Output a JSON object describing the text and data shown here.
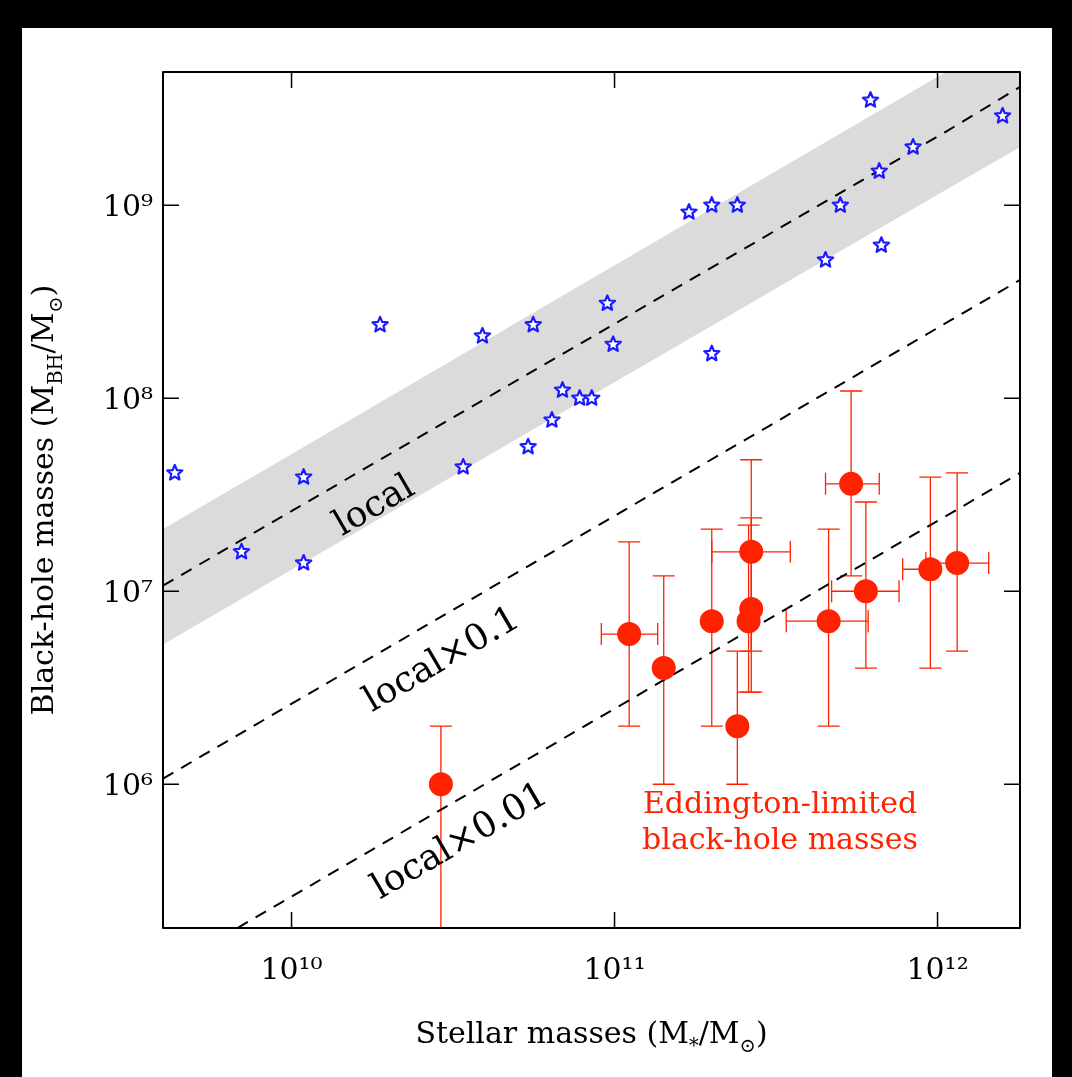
{
  "chart_data": {
    "type": "scatter",
    "xlabel": "Stellar masses (M$_{*}$/M$_{⊙}$)",
    "ylabel": "Black-hole masses (M$_{BH}$/M$_{⊙}$)",
    "log": "xy",
    "xlim": [
      4000000000.0,
      1800000000000.0
    ],
    "ylim": [
      180000.0,
      4900000000.0
    ],
    "xticks": [
      {
        "value": 10000000000.0,
        "label": "10¹⁰"
      },
      {
        "value": 100000000000.0,
        "label": "10¹¹"
      },
      {
        "value": 1000000000000.0,
        "label": "10¹²"
      }
    ],
    "yticks": [
      {
        "value": 1000000.0,
        "label": "10⁶"
      },
      {
        "value": 10000000.0,
        "label": "10⁷"
      },
      {
        "value": 100000000.0,
        "label": "10⁸"
      },
      {
        "value": 1000000000.0,
        "label": "10⁹"
      }
    ],
    "series": [
      {
        "type": "line",
        "color": "#000000",
        "line_style": "dashed",
        "marker": "none",
        "x": [
          4000000000.0,
          1060000000000.0,
          1800000000000.0
        ],
        "values": [
          10700000.0,
          2400000000.0,
          4100000000.0
        ],
        "lower": [
          5300000.0,
          1200000000.0,
          2000000000.0
        ],
        "upper": [
          21000000.0,
          4900000000.0,
          4900000000.0
        ]
      },
      {
        "type": "line",
        "color": "#000000",
        "line_style": "dashed",
        "marker": "none",
        "x": [
          4000000000.0,
          1800000000000.0
        ],
        "values": [
          1070000.0,
          410000000.0
        ]
      },
      {
        "type": "line",
        "color": "#000000",
        "line_style": "dashed",
        "marker": "none",
        "x": [
          6800000000.0,
          1800000000000.0
        ],
        "values": [
          180000.0,
          41000000.0
        ]
      },
      {
        "color": "#1a1aff",
        "marker": "star",
        "x": [
          4350000000.0,
          10900000000.0,
          18800000000.0,
          39000000000.0,
          56000000000.0,
          34000000000.0,
          54000000000.0,
          64000000000.0,
          69000000000.0,
          78000000000.0,
          85000000000.0,
          95000000000.0,
          99000000000.0,
          170000000000.0,
          200000000000.0,
          240000000000.0,
          200000000000.0,
          450000000000.0,
          500000000000.0,
          620000000000.0,
          660000000000.0,
          670000000000.0,
          840000000000.0,
          1590000000000.0,
          7000000000.0,
          10900000000.0
        ],
        "values": [
          41000000.0,
          39000000.0,
          240000000.0,
          210000000.0,
          240000000.0,
          44000000.0,
          56000000.0,
          77000000.0,
          110000000.0,
          100000000.0,
          100000000.0,
          310000000.0,
          190000000.0,
          920000000.0,
          1000000000.0,
          1000000000.0,
          170000000.0,
          520000000.0,
          1000000000.0,
          3500000000.0,
          1500000000.0,
          620000000.0,
          2000000000.0,
          2900000000.0,
          16000000.0,
          14000000.0
        ]
      },
      {
        "color": "#ff2200",
        "marker": "circle",
        "x": [
          111000000000.0,
          142000000000.0,
          265000000000.0,
          265000000000.0,
          260000000000.0,
          460000000000.0,
          540000000000.0,
          600000000000.0,
          950000000000.0,
          1150000000000.0
        ],
        "values": [
          6000000.0,
          4000000.0,
          16000000.0,
          8100000.0,
          7000000.0,
          7000000.0,
          36000000.0,
          10000000.0,
          13000000.0,
          14000000.0
        ],
        "errors": [
          [
            2000000.0,
            18000000.0
          ],
          [
            1000000.0,
            12000000.0
          ],
          [
            4900000.0,
            48000000.0
          ],
          [
            3000000.0,
            24000000.0
          ],
          [
            3000000.0,
            22000000.0
          ],
          [
            2000000.0,
            21000000.0
          ],
          [
            12000000.0,
            109000000.0
          ],
          [
            4000000.0,
            29000000.0
          ],
          [
            4000000.0,
            39000000.0
          ],
          [
            4900000.0,
            41000000.0
          ]
        ],
        "xerrors": [
          [
            91000000000.0,
            136000000000.0
          ],
          null,
          [
            200000000000.0,
            350000000000.0
          ],
          null,
          null,
          [
            340000000000.0,
            610000000000.0
          ],
          [
            450000000000.0,
            660000000000.0
          ],
          [
            470000000000.0,
            760000000000.0
          ],
          [
            780000000000.0,
            950000000000.0
          ],
          [
            920000000000.0,
            1440000000000.0
          ]
        ]
      },
      {
        "color": "#ff2200",
        "marker": "circle",
        "x": [
          200000000000.0,
          240000000000.0,
          29000000000.0
        ],
        "values": [
          7000000.0,
          2000000.0,
          1000000.0
        ],
        "errors": [
          [
            2000000.0,
            21000000.0
          ],
          [
            1000000.0,
            4900000.0
          ],
          [
            180000.0,
            2000000.0
          ]
        ]
      }
    ],
    "annotations": [
      {
        "text": "local",
        "x": 15800000000.0,
        "y": 40500000.0
      },
      {
        "text": "local×0.1",
        "x": 25600000000.0,
        "y": 6460000.0
      },
      {
        "text": "local×0.01",
        "x": 29100000000.0,
        "y": 740000.0
      },
      "Eddington-limited",
      "black-hole masses"
    ]
  }
}
